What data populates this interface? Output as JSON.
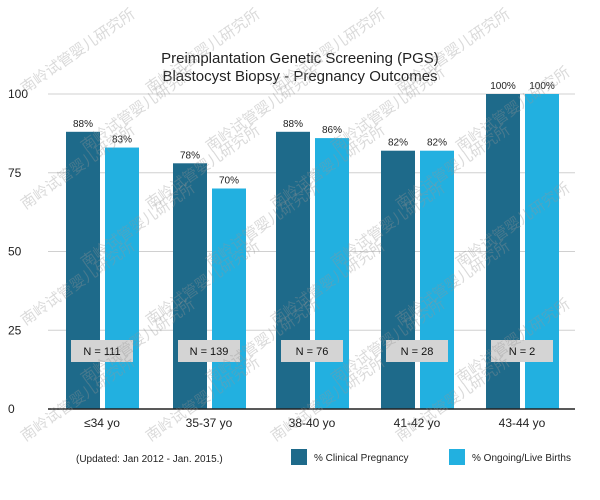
{
  "chart_data": {
    "type": "bar",
    "title": [
      "Preimplantation Genetic Screening (PGS)",
      "Blastocyst Biopsy - Pregnancy Outcomes"
    ],
    "categories": [
      "≤34 yo",
      "35-37 yo",
      "38-40 yo",
      "41-42 yo",
      "43-44 yo"
    ],
    "series": [
      {
        "name": "% Clinical Pregnancy",
        "color": "#1e6a8a",
        "values": [
          88,
          78,
          88,
          82,
          100
        ],
        "labels": [
          "88%",
          "78%",
          "88%",
          "82%",
          "100%"
        ]
      },
      {
        "name": "% Ongoing/Live Births",
        "color": "#22b0e0",
        "values": [
          83,
          70,
          86,
          82,
          100
        ],
        "labels": [
          "83%",
          "70%",
          "86%",
          "82%",
          "100%"
        ]
      }
    ],
    "n_labels": [
      "N = 111",
      "N = 139",
      "N = 76",
      "N = 28",
      "N = 2"
    ],
    "yticks": [
      0,
      25,
      50,
      75,
      100
    ],
    "ytick_labels": [
      "0",
      "25",
      "50",
      "75",
      "100"
    ],
    "ylim": [
      0,
      100
    ],
    "grid": true,
    "legend_position": "bottom-right",
    "footnote": "(Updated: Jan 2012 - Jan. 2015.)"
  },
  "watermark": "南岭试管婴儿研究所"
}
